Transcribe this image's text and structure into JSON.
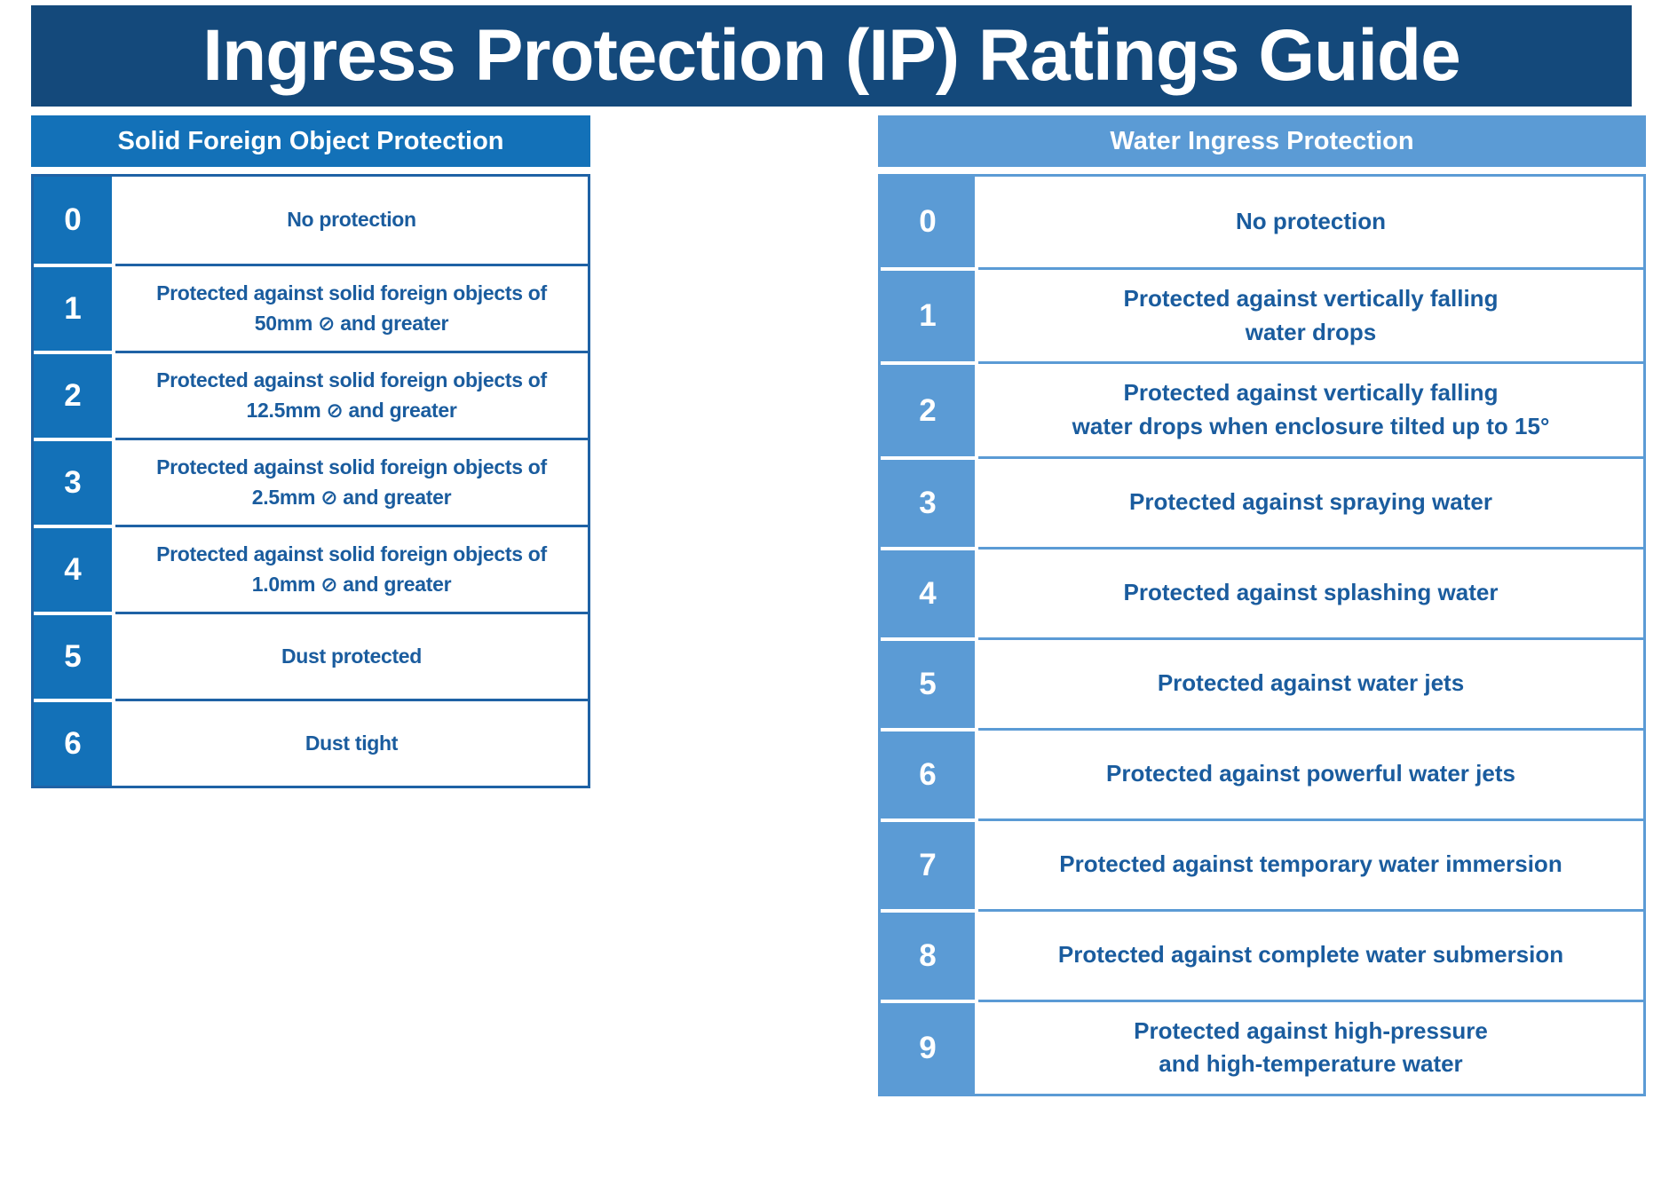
{
  "title": "Ingress Protection (IP) Ratings Guide",
  "colors": {
    "title_bar_bg": "#14497B",
    "title_text": "#FFFFFF",
    "body_text": "#1A5C9E",
    "solid_accent": "#1371B8",
    "solid_line": "#1F62A5",
    "water_accent": "#5B9BD5",
    "water_line": "#5B9BD5"
  },
  "tables": [
    {
      "header": "Solid Foreign Object Protection",
      "accent": "#1371B8",
      "line": "#1F62A5",
      "rows": [
        {
          "rating": "0",
          "lines": [
            "No protection"
          ]
        },
        {
          "rating": "1",
          "lines": [
            "Protected against solid foreign objects of",
            "50mm ⊘ and greater"
          ]
        },
        {
          "rating": "2",
          "lines": [
            "Protected against solid foreign objects of",
            "12.5mm ⊘ and greater"
          ]
        },
        {
          "rating": "3",
          "lines": [
            "Protected against solid foreign objects of",
            "2.5mm ⊘ and greater"
          ]
        },
        {
          "rating": "4",
          "lines": [
            "Protected against solid foreign objects of",
            "1.0mm ⊘ and greater"
          ]
        },
        {
          "rating": "5",
          "lines": [
            "Dust protected"
          ]
        },
        {
          "rating": "6",
          "lines": [
            "Dust tight"
          ]
        }
      ]
    },
    {
      "header": "Water Ingress Protection",
      "accent": "#5B9BD5",
      "line": "#5B9BD5",
      "rows": [
        {
          "rating": "0",
          "lines": [
            "No protection"
          ]
        },
        {
          "rating": "1",
          "lines": [
            "Protected against vertically falling",
            "water drops"
          ]
        },
        {
          "rating": "2",
          "lines": [
            "Protected against vertically falling",
            "water drops when enclosure tilted up to 15°"
          ]
        },
        {
          "rating": "3",
          "lines": [
            "Protected against spraying water"
          ]
        },
        {
          "rating": "4",
          "lines": [
            "Protected against splashing water"
          ]
        },
        {
          "rating": "5",
          "lines": [
            "Protected against water jets"
          ]
        },
        {
          "rating": "6",
          "lines": [
            "Protected against powerful water jets"
          ]
        },
        {
          "rating": "7",
          "lines": [
            "Protected against temporary water immersion"
          ]
        },
        {
          "rating": "8",
          "lines": [
            "Protected against complete water submersion"
          ]
        },
        {
          "rating": "9",
          "lines": [
            "Protected against high-pressure",
            "and high-temperature water"
          ]
        }
      ]
    }
  ]
}
